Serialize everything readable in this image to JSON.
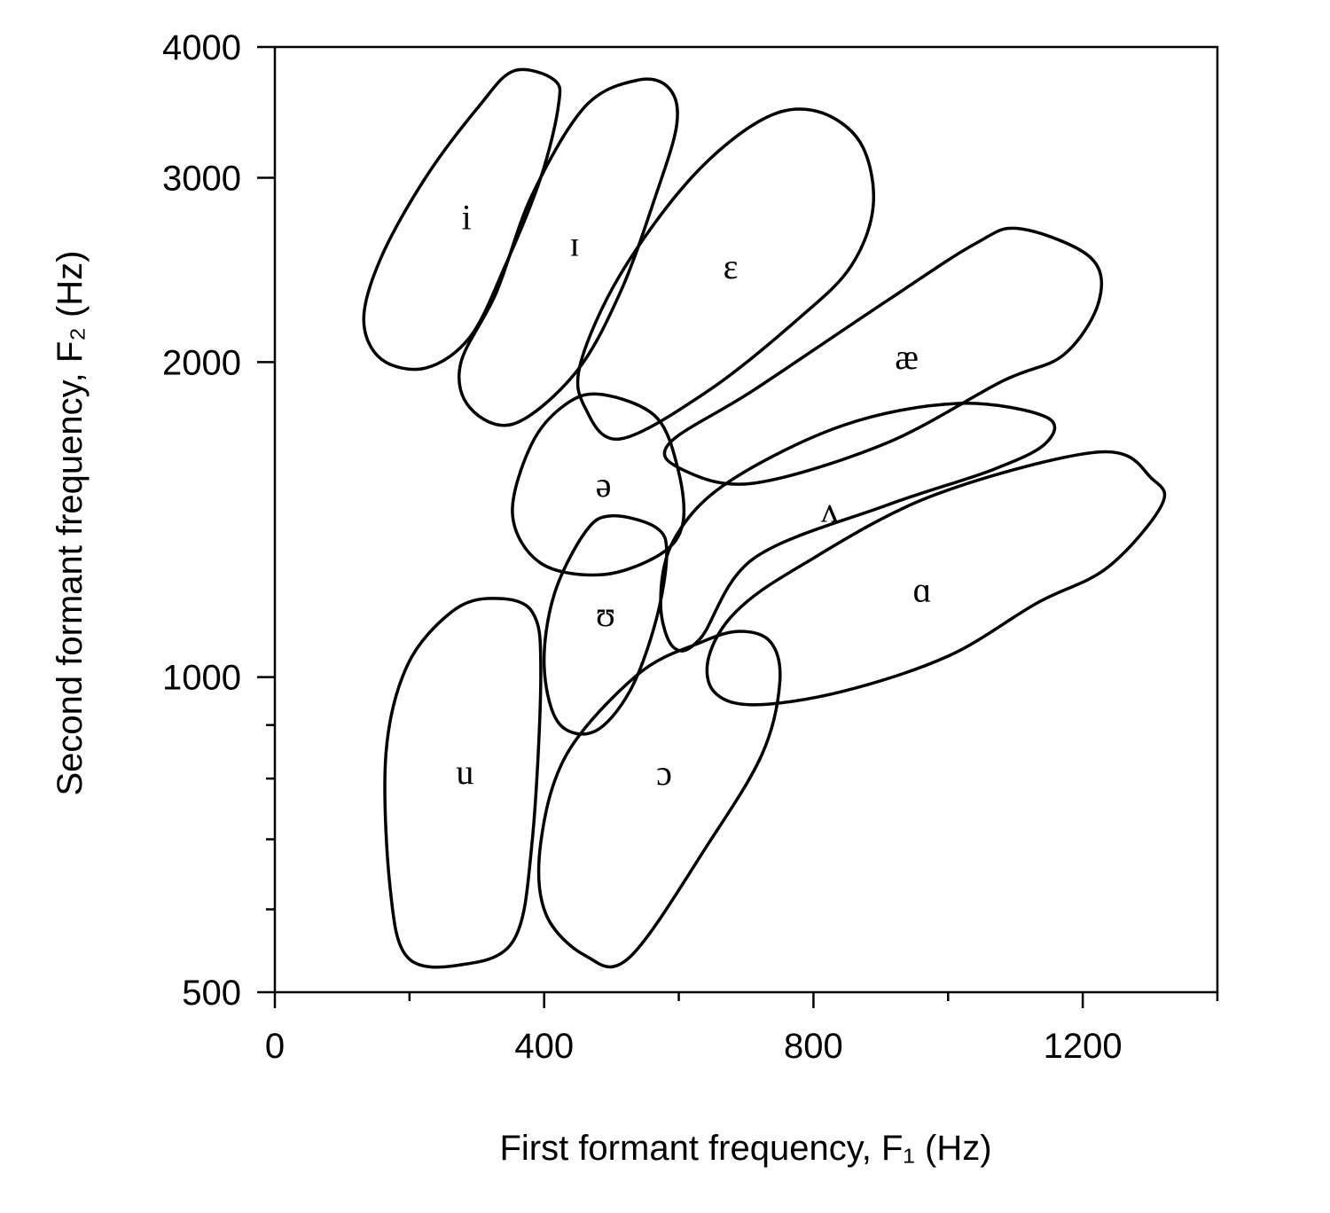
{
  "chart_data": {
    "type": "contour",
    "color": "#000000",
    "ylog": true,
    "xlabel": "First formant frequency, F₁ (Hz)",
    "ylabel": "Second formant frequency, F₂ (Hz)",
    "xlim": [
      0,
      1400
    ],
    "xticks": [
      0,
      400,
      800,
      1200
    ],
    "xminorticks": [
      200,
      600,
      1000,
      1400
    ],
    "ylim": [
      500,
      4000
    ],
    "yticks": [
      500,
      1000,
      2000,
      3000,
      4000
    ],
    "yminorticks": [
      600,
      700,
      800,
      900
    ],
    "series": [
      {
        "name": "i",
        "x": [
          355,
          415,
          421,
          395,
          342,
          290,
          224,
          158,
          132,
          158,
          224,
          303
        ],
        "values": [
          3795,
          3720,
          3510,
          3002,
          2471,
          2114,
          1974,
          2013,
          2198,
          2519,
          3002,
          3510
        ]
      },
      {
        "name": "ɪ",
        "x": [
          540,
          586,
          597,
          566,
          513,
          447,
          355,
          290,
          276,
          329,
          382,
          461
        ],
        "values": [
          3720,
          3650,
          3375,
          2888,
          2331,
          1955,
          1746,
          1808,
          1994,
          2331,
          2888,
          3510
        ]
      },
      {
        "name": "ɛ",
        "x": [
          803,
          869,
          889,
          856,
          777,
          645,
          513,
          461,
          454,
          513,
          619,
          724
        ],
        "values": [
          3475,
          3246,
          2832,
          2471,
          2198,
          1880,
          1689,
          1808,
          1994,
          2424,
          3002,
          3410
        ]
      },
      {
        "name": "æ",
        "x": [
          1106,
          1211,
          1224,
          1172,
          1080,
          908,
          711,
          606,
          586,
          711,
          908,
          1040
        ],
        "values": [
          2682,
          2519,
          2286,
          2033,
          1917,
          1673,
          1532,
          1578,
          1673,
          1880,
          2286,
          2594
        ]
      },
      {
        "name": "ʌ",
        "x": [
          1014,
          1145,
          1145,
          1066,
          908,
          711,
          632,
          592,
          573,
          592,
          671,
          843
        ],
        "values": [
          1826,
          1773,
          1673,
          1578,
          1459,
          1298,
          1089,
          1068,
          1177,
          1350,
          1532,
          1739
        ]
      },
      {
        "name": "ɑ",
        "x": [
          1224,
          1303,
          1317,
          1237,
          1132,
          1001,
          843,
          711,
          652,
          645,
          685,
          777,
          974
        ],
        "values": [
          1641,
          1547,
          1459,
          1273,
          1177,
          1048,
          969,
          941,
          969,
          1048,
          1155,
          1273,
          1488
        ]
      },
      {
        "name": "ə",
        "x": [
          487,
          566,
          599,
          606,
          573,
          487,
          395,
          353,
          382,
          434
        ],
        "values": [
          1862,
          1773,
          1578,
          1403,
          1311,
          1253,
          1285,
          1431,
          1673,
          1826
        ]
      },
      {
        "name": "ʊ",
        "x": [
          500,
          566,
          582,
          566,
          527,
          474,
          421,
          400,
          415,
          461
        ],
        "values": [
          1426,
          1390,
          1311,
          1132,
          969,
          887,
          905,
          1027,
          1200,
          1376
        ]
      },
      {
        "name": "u",
        "x": [
          323,
          382,
          395,
          382,
          355,
          276,
          197,
          171,
          165,
          197,
          263
        ],
        "values": [
          1189,
          1155,
          1007,
          695,
          561,
          531,
          540,
          631,
          845,
          1027,
          1155
        ]
      },
      {
        "name": "ɔ",
        "x": [
          691,
          737,
          750,
          724,
          645,
          527,
          461,
          402,
          395,
          434,
          540,
          632
        ],
        "values": [
          1106,
          1079,
          988,
          845,
          695,
          540,
          542,
          595,
          695,
          845,
          1007,
          1079
        ]
      }
    ]
  }
}
